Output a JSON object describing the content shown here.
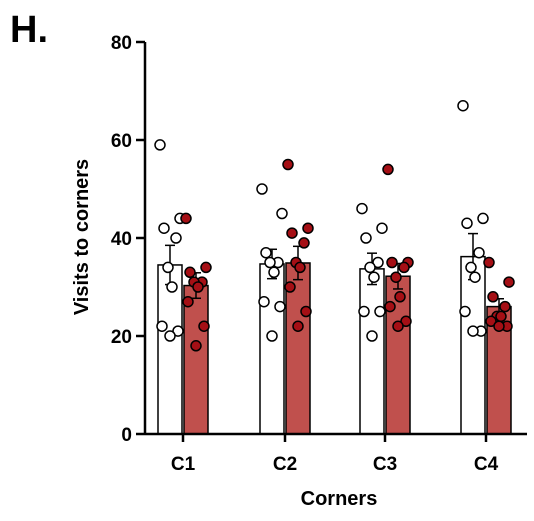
{
  "panel_label": "H.",
  "chart_data": {
    "type": "bar",
    "title": "",
    "xlabel": "Corners",
    "ylabel": "Visits to corners",
    "categories": [
      "C1",
      "C2",
      "C3",
      "C4"
    ],
    "ylim": [
      0,
      80
    ],
    "yticks": [
      0,
      20,
      40,
      60,
      80
    ],
    "grid": false,
    "legend": "none",
    "series": [
      {
        "fill": "#ffffff",
        "dot_fill": "#ffffff",
        "means": [
          34.5,
          34.7,
          33.7,
          36.2
        ],
        "sem": [
          4.0,
          3.0,
          3.2,
          4.7
        ],
        "points": [
          [
            59,
            44,
            42,
            40,
            34,
            30,
            22,
            21,
            20
          ],
          [
            50,
            45,
            37,
            35,
            35,
            33,
            27,
            26,
            20
          ],
          [
            46,
            42,
            40,
            35,
            34,
            32,
            25,
            25,
            20
          ],
          [
            67,
            44,
            43,
            37,
            34,
            32,
            25,
            21,
            21
          ]
        ]
      },
      {
        "fill": "#c0504d",
        "dot_fill": "#a50f15",
        "means": [
          30.3,
          34.9,
          32.2,
          26.0
        ],
        "sem": [
          2.6,
          3.4,
          2.6,
          1.6
        ],
        "points": [
          [
            44,
            34,
            33,
            31,
            31,
            30,
            27,
            22,
            18
          ],
          [
            55,
            42,
            41,
            39,
            35,
            34,
            30,
            25,
            22
          ],
          [
            54,
            35,
            35,
            34,
            32,
            28,
            26,
            23,
            22
          ],
          [
            35,
            31,
            28,
            26,
            24,
            24,
            23,
            22,
            22
          ]
        ]
      }
    ]
  },
  "colors": {
    "axis": "#000000",
    "bar_outline": "#000000"
  }
}
